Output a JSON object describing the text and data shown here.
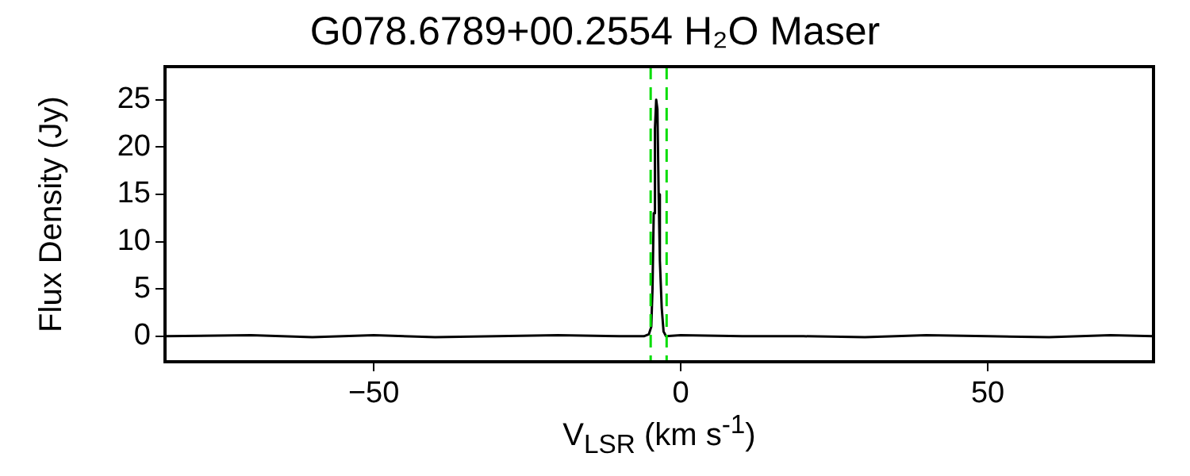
{
  "chart_data": {
    "type": "line",
    "title": "G078.6789+00.2554 H₂O Maser",
    "xlabel": "V$_{LSR}$ (km s$^{-1}$)",
    "ylabel": "Flux Density (Jy)",
    "x": [
      -84,
      -70,
      -60,
      -50,
      -40,
      -30,
      -20,
      -10,
      -6,
      -5.2,
      -4.8,
      -4.6,
      -4.4,
      -4.2,
      -4.0,
      -3.8,
      -3.6,
      -3.4,
      -3.1,
      -2.8,
      -2.4,
      0,
      10,
      20,
      30,
      40,
      50,
      60,
      70,
      77
    ],
    "series": [
      {
        "color": "#000000",
        "values": [
          0,
          0.1,
          -0.1,
          0.1,
          -0.1,
          0,
          0.1,
          0,
          0,
          0.2,
          1,
          5,
          13,
          22,
          25,
          24,
          15,
          8,
          3,
          0.5,
          0,
          0.1,
          0,
          0,
          -0.1,
          0.1,
          0,
          -0.1,
          0.1,
          0
        ]
      }
    ],
    "xlim": [
      -84,
      77
    ],
    "xticks": [
      -50,
      0,
      50
    ],
    "ylim": [
      -2.7,
      28.5
    ],
    "yticks": [
      0,
      5,
      10,
      15,
      20,
      25
    ],
    "ref_lines": [
      {
        "axis": "x",
        "value": -4.9,
        "color": "#00dd00",
        "line_style": "dashed"
      },
      {
        "axis": "x",
        "value": -2.3,
        "color": "#00dd00",
        "line_style": "dashed"
      }
    ],
    "grid": false,
    "legend": false,
    "marker": "none",
    "line_style": "solid"
  }
}
